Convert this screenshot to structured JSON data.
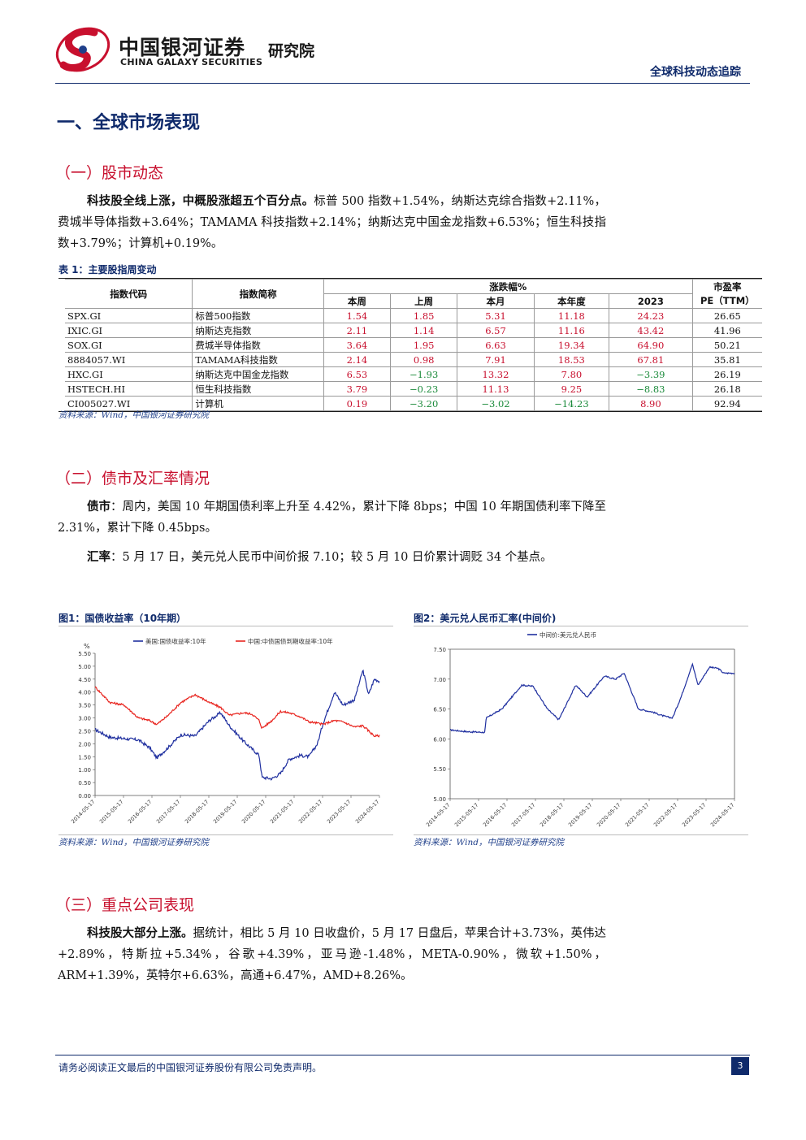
{
  "header": {
    "logo_cn": "中国银河证券",
    "logo_en": "CHINA GALAXY SECURITIES",
    "institute": "研究院",
    "report_title": "全球科技动态追踪"
  },
  "section1": {
    "title": "一、全球市场表现",
    "sub1": {
      "title": "（一）股市动态",
      "lead": "科技股全线上涨，中概股涨超五个百分点。",
      "text": "标普 500 指数+1.54%，纳斯达克综合指数+2.11%，费城半导体指数+3.64%；TAMAMA 科技指数+2.14%；纳斯达克中国金龙指数+6.53%；恒生科技指数+3.79%；计算机+0.19%。"
    },
    "table": {
      "caption": "表 1：主要股指周变动",
      "headers": {
        "code": "指数代码",
        "name": "指数简称",
        "change_group": "涨跌幅%",
        "this_week": "本周",
        "last_week": "上周",
        "this_month": "本月",
        "ytd": "本年度",
        "y2023": "2023",
        "pe_line1": "市盈率",
        "pe_line2": "PE（TTM）"
      },
      "rows": [
        {
          "code": "SPX.GI",
          "name": "标普500指数",
          "w": "1.54",
          "lw": "1.85",
          "m": "5.31",
          "ytd": "11.18",
          "y23": "24.23",
          "pe": "26.65"
        },
        {
          "code": "IXIC.GI",
          "name": "纳斯达克指数",
          "w": "2.11",
          "lw": "1.14",
          "m": "6.57",
          "ytd": "11.16",
          "y23": "43.42",
          "pe": "41.96"
        },
        {
          "code": "SOX.GI",
          "name": "费城半导体指数",
          "w": "3.64",
          "lw": "1.95",
          "m": "6.63",
          "ytd": "19.34",
          "y23": "64.90",
          "pe": "50.21"
        },
        {
          "code": "8884057.WI",
          "name": "TAMAMA科技指数",
          "w": "2.14",
          "lw": "0.98",
          "m": "7.91",
          "ytd": "18.53",
          "y23": "67.81",
          "pe": "35.81"
        },
        {
          "code": "HXC.GI",
          "name": "纳斯达克中国金龙指数",
          "w": "6.53",
          "lw": "-1.93",
          "m": "13.32",
          "ytd": "7.80",
          "y23": "-3.39",
          "pe": "26.19"
        },
        {
          "code": "HSTECH.HI",
          "name": "恒生科技指数",
          "w": "3.79",
          "lw": "-0.23",
          "m": "11.13",
          "ytd": "9.25",
          "y23": "-8.83",
          "pe": "26.18"
        },
        {
          "code": "CI005027.WI",
          "name": "计算机",
          "w": "0.19",
          "lw": "-3.20",
          "m": "-3.02",
          "ytd": "-14.23",
          "y23": "8.90",
          "pe": "92.94"
        }
      ],
      "source": "资料来源：Wind，中国银河证券研究院"
    },
    "sub2": {
      "title": "（二）债市及汇率情况",
      "bond_lead": "债市",
      "bond_text": "：周内，美国 10 年期国债利率上升至 4.42%，累计下降 8bps；中国 10 年期国债利率下降至 2.31%，累计下降 0.45bps。",
      "fx_lead": "汇率",
      "fx_text": "：5 月 17 日，美元兑人民币中间价报 7.10；较 5 月 10 日价累计调贬 34 个基点。"
    },
    "fig1": {
      "caption": "图1：国债收益率（10年期）",
      "source": "资料来源：Wind，中国银河证券研究院"
    },
    "fig2": {
      "caption": "图2：美元兑人民币汇率(中间价)",
      "source": "资料来源：Wind，中国银河证券研究院"
    },
    "sub3": {
      "title": "（三）重点公司表现",
      "lead": "科技股大部分上涨。",
      "text": "据统计，相比 5 月 10 日收盘价，5 月 17 日盘后，苹果合计+3.73%，英伟达+2.89%，特斯拉+5.34%，谷歌+4.39%，亚马逊-1.48%，META-0.90%，微软+1.50%，ARM+1.39%，英特尔+6.63%，高通+6.47%，AMD+8.26%。"
    }
  },
  "footer": {
    "disclaimer": "请务必阅读正文最后的中国银河证券股份有限公司免责声明。",
    "page": "3"
  },
  "colors": {
    "navy": "#0f2a6b",
    "red": "#c8102e",
    "green": "#1a8a3a",
    "us_line": "#1f2f9f",
    "cn_line": "#e8251f"
  },
  "chart_data": [
    {
      "type": "line",
      "title": "",
      "ylabel": "%",
      "ylim": [
        0,
        5.5
      ],
      "yticks": [
        "0.00",
        "0.50",
        "1.00",
        "1.50",
        "2.00",
        "2.50",
        "3.00",
        "3.50",
        "4.00",
        "4.50",
        "5.00",
        "5.50"
      ],
      "x_ticks": [
        "2014-05-17",
        "2015-05-17",
        "2016-05-17",
        "2017-05-17",
        "2018-05-17",
        "2019-05-17",
        "2020-05-17",
        "2021-05-17",
        "2022-05-17",
        "2023-05-17",
        "2024-05-17"
      ],
      "x_decimal_years": [
        2014.38,
        2014.9,
        2015.4,
        2015.9,
        2016.3,
        2016.55,
        2016.9,
        2017.4,
        2017.9,
        2018.4,
        2018.8,
        2019.1,
        2019.6,
        2019.9,
        2020.15,
        2020.25,
        2020.6,
        2020.9,
        2021.2,
        2021.6,
        2021.9,
        2022.2,
        2022.4,
        2022.8,
        2023.1,
        2023.5,
        2023.8,
        2024.0,
        2024.2,
        2024.38
      ],
      "legend_position": "top",
      "series": [
        {
          "name": "美国:国债收益率:10年",
          "values": [
            2.55,
            2.25,
            2.2,
            2.15,
            1.85,
            1.45,
            1.8,
            2.35,
            2.3,
            2.9,
            3.2,
            2.7,
            2.1,
            1.8,
            1.55,
            0.7,
            0.65,
            0.85,
            1.4,
            1.55,
            1.5,
            2.0,
            2.8,
            4.0,
            3.5,
            3.7,
            4.85,
            3.9,
            4.5,
            4.42
          ]
        },
        {
          "name": "中国:中债国债到期收益率:10年",
          "values": [
            4.2,
            3.6,
            3.5,
            3.0,
            2.9,
            2.75,
            3.05,
            3.6,
            3.9,
            3.6,
            3.4,
            3.1,
            3.2,
            3.15,
            2.9,
            2.6,
            2.9,
            3.25,
            3.2,
            3.05,
            2.85,
            2.8,
            2.75,
            2.9,
            2.85,
            2.65,
            2.7,
            2.5,
            2.3,
            2.31
          ]
        }
      ]
    },
    {
      "type": "line",
      "title": "",
      "ylim": [
        5,
        7.5
      ],
      "yticks": [
        "5.00",
        "5.50",
        "6.00",
        "6.50",
        "7.00",
        "7.50"
      ],
      "x_ticks": [
        "2014-05-17",
        "2015-05-17",
        "2016-05-17",
        "2017-05-17",
        "2018-05-17",
        "2019-05-17",
        "2020-05-17",
        "2021-05-17",
        "2022-05-17",
        "2023-05-17",
        "2024-05-17"
      ],
      "x_decimal_years": [
        2014.38,
        2015.0,
        2015.6,
        2015.65,
        2016.2,
        2016.9,
        2017.3,
        2017.8,
        2018.2,
        2018.8,
        2019.2,
        2019.8,
        2020.2,
        2020.5,
        2021.0,
        2021.5,
        2021.9,
        2022.2,
        2022.5,
        2022.9,
        2023.1,
        2023.5,
        2023.8,
        2024.0,
        2024.38
      ],
      "legend_position": "top",
      "series": [
        {
          "name": "中间价:美元兑人民币",
          "values": [
            6.15,
            6.12,
            6.11,
            6.35,
            6.5,
            6.9,
            6.88,
            6.5,
            6.32,
            6.9,
            6.7,
            7.05,
            7.0,
            7.1,
            6.5,
            6.45,
            6.38,
            6.35,
            6.7,
            7.25,
            6.9,
            7.2,
            7.18,
            7.1,
            7.1
          ]
        }
      ]
    }
  ]
}
